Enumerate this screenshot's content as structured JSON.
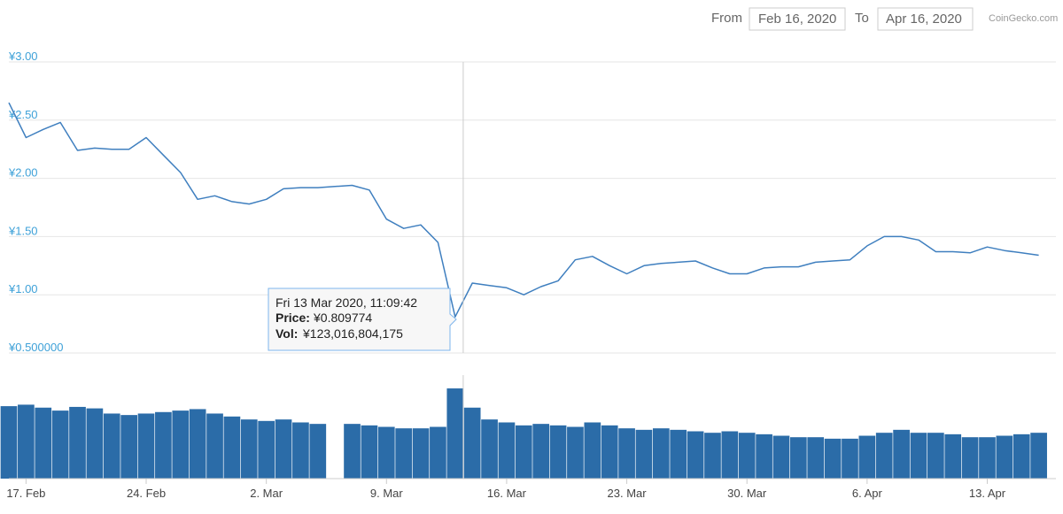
{
  "range_selector": {
    "from_label": "From",
    "from_value": "Feb 16, 2020",
    "to_label": "To",
    "to_value": "Apr 16, 2020"
  },
  "credit": "CoinGecko.com",
  "tooltip": {
    "date": "Fri 13 Mar 2020, 11:09:42",
    "price_label": "Price:",
    "price_value": "¥0.809774",
    "vol_label": "Vol:",
    "vol_value": "¥123,016,804,175"
  },
  "colors": {
    "line": "#3f7fbf",
    "volume": "#2b6ca8",
    "axis_label": "#3ea1d8",
    "grid": "#e6e6e6",
    "crosshair": "#cccccc"
  },
  "chart_data": {
    "type": "line",
    "title": "",
    "currency": "¥",
    "x_range": [
      "2020-02-16",
      "2020-04-17"
    ],
    "x_ticks": [
      "17. Feb",
      "24. Feb",
      "2. Mar",
      "9. Mar",
      "16. Mar",
      "23. Mar",
      "30. Mar",
      "6. Apr",
      "13. Apr"
    ],
    "x_tick_dates": [
      "2020-02-17",
      "2020-02-24",
      "2020-03-02",
      "2020-03-09",
      "2020-03-16",
      "2020-03-23",
      "2020-03-30",
      "2020-04-06",
      "2020-04-13"
    ],
    "y_ticks": [
      "¥0.500000",
      "¥1.00",
      "¥1.50",
      "¥2.00",
      "¥2.50",
      "¥3.00"
    ],
    "y_tick_values": [
      0.5,
      1.0,
      1.5,
      2.0,
      2.5,
      3.0
    ],
    "ylim": [
      0.5,
      3.0
    ],
    "grid": true,
    "series": [
      {
        "kind": "price",
        "x": [
          "2020-02-16",
          "2020-02-17",
          "2020-02-18",
          "2020-02-19",
          "2020-02-20",
          "2020-02-21",
          "2020-02-22",
          "2020-02-23",
          "2020-02-24",
          "2020-02-25",
          "2020-02-26",
          "2020-02-27",
          "2020-02-28",
          "2020-02-29",
          "2020-03-01",
          "2020-03-02",
          "2020-03-03",
          "2020-03-04",
          "2020-03-05",
          "2020-03-06",
          "2020-03-07",
          "2020-03-08",
          "2020-03-09",
          "2020-03-10",
          "2020-03-11",
          "2020-03-12",
          "2020-03-13",
          "2020-03-14",
          "2020-03-15",
          "2020-03-16",
          "2020-03-17",
          "2020-03-18",
          "2020-03-19",
          "2020-03-20",
          "2020-03-21",
          "2020-03-22",
          "2020-03-23",
          "2020-03-24",
          "2020-03-25",
          "2020-03-26",
          "2020-03-27",
          "2020-03-28",
          "2020-03-29",
          "2020-03-30",
          "2020-03-31",
          "2020-04-01",
          "2020-04-02",
          "2020-04-03",
          "2020-04-04",
          "2020-04-05",
          "2020-04-06",
          "2020-04-07",
          "2020-04-08",
          "2020-04-09",
          "2020-04-10",
          "2020-04-11",
          "2020-04-12",
          "2020-04-13",
          "2020-04-14",
          "2020-04-15",
          "2020-04-16"
        ],
        "values": [
          2.65,
          2.35,
          2.42,
          2.48,
          2.24,
          2.26,
          2.25,
          2.25,
          2.35,
          2.2,
          2.05,
          1.82,
          1.85,
          1.8,
          1.78,
          1.82,
          1.91,
          1.92,
          1.92,
          1.93,
          1.94,
          1.9,
          1.65,
          1.57,
          1.6,
          1.45,
          0.81,
          1.1,
          1.08,
          1.06,
          1.0,
          1.07,
          1.12,
          1.3,
          1.33,
          1.25,
          1.18,
          1.25,
          1.27,
          1.28,
          1.29,
          1.23,
          1.18,
          1.18,
          1.23,
          1.24,
          1.24,
          1.28,
          1.29,
          1.3,
          1.42,
          1.5,
          1.5,
          1.47,
          1.37,
          1.37,
          1.36,
          1.41,
          1.38,
          1.36,
          1.34
        ]
      },
      {
        "kind": "volume",
        "x": [
          "2020-02-16",
          "2020-02-17",
          "2020-02-18",
          "2020-02-19",
          "2020-02-20",
          "2020-02-21",
          "2020-02-22",
          "2020-02-23",
          "2020-02-24",
          "2020-02-25",
          "2020-02-26",
          "2020-02-27",
          "2020-02-28",
          "2020-02-29",
          "2020-03-01",
          "2020-03-02",
          "2020-03-03",
          "2020-03-04",
          "2020-03-05",
          "2020-03-06",
          "2020-03-07",
          "2020-03-08",
          "2020-03-09",
          "2020-03-10",
          "2020-03-11",
          "2020-03-12",
          "2020-03-13",
          "2020-03-14",
          "2020-03-15",
          "2020-03-16",
          "2020-03-17",
          "2020-03-18",
          "2020-03-19",
          "2020-03-20",
          "2020-03-21",
          "2020-03-22",
          "2020-03-23",
          "2020-03-24",
          "2020-03-25",
          "2020-03-26",
          "2020-03-27",
          "2020-03-28",
          "2020-03-29",
          "2020-03-30",
          "2020-03-31",
          "2020-04-01",
          "2020-04-02",
          "2020-04-03",
          "2020-04-04",
          "2020-04-05",
          "2020-04-06",
          "2020-04-07",
          "2020-04-08",
          "2020-04-09",
          "2020-04-10",
          "2020-04-11",
          "2020-04-12",
          "2020-04-13",
          "2020-04-14",
          "2020-04-15",
          "2020-04-16"
        ],
        "values": [
          98,
          100,
          96,
          92,
          97,
          95,
          88,
          86,
          88,
          90,
          92,
          94,
          88,
          84,
          80,
          78,
          80,
          76,
          74,
          0,
          74,
          72,
          70,
          68,
          68,
          70,
          122,
          96,
          80,
          76,
          72,
          74,
          72,
          70,
          76,
          72,
          68,
          66,
          68,
          66,
          64,
          62,
          64,
          62,
          60,
          58,
          56,
          56,
          54,
          54,
          58,
          62,
          66,
          62,
          62,
          60,
          56,
          56,
          58,
          60,
          62
        ]
      }
    ]
  }
}
